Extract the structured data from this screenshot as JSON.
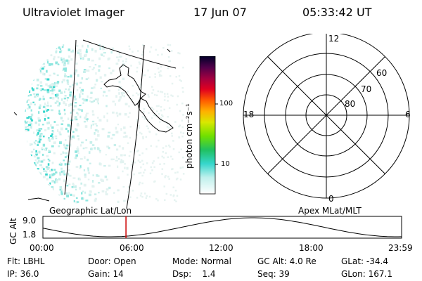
{
  "header": {
    "instrument": "Ultraviolet Imager",
    "date": "17 Jun 07",
    "time": "05:33:42 UT"
  },
  "colorbar": {
    "unit": "photon cm⁻²s⁻¹",
    "ticks": [
      "100",
      "10"
    ]
  },
  "polar": {
    "mlt_labels": {
      "top": "12",
      "left": "18",
      "right": "6",
      "bottom": "0"
    },
    "lat_labels": [
      "60",
      "70",
      "80"
    ]
  },
  "panels": {
    "left_caption": "Geographic Lat/Lon",
    "right_caption": "Apex MLat/MLT"
  },
  "altitude_plot": {
    "ylabel": "GC Alt",
    "y_ticks": [
      "9.0",
      "1.8"
    ],
    "x_ticks": [
      "00:00",
      "06:00",
      "12:00",
      "18:00",
      "23:59"
    ],
    "marker_time_hours": 5.56
  },
  "status": {
    "flt_label": "Flt:",
    "flt_value": "LBHL",
    "ip_label": "IP:",
    "ip_value": "36.0",
    "door_label": "Door:",
    "door_value": "Open",
    "gain_label": "Gain:",
    "gain_value": "14",
    "mode_label": "Mode:",
    "mode_value": "Normal",
    "dsp_label": "Dsp:",
    "dsp_value": "1.4",
    "gcalt_label": "GC Alt:",
    "gcalt_value": "4.0 Re",
    "seq_label": "Seq:",
    "seq_value": "39",
    "glat_label": "GLat:",
    "glat_value": "-34.4",
    "glon_label": "GLon:",
    "glon_value": "167.1"
  },
  "colors": {
    "aurora": "#35d6cc",
    "marker": "#cc0000"
  }
}
